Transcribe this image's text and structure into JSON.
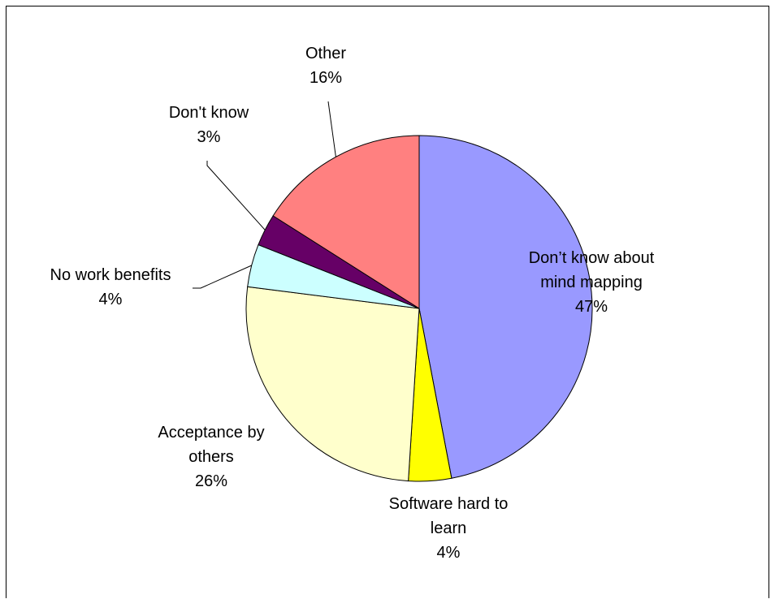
{
  "chart_data": {
    "type": "pie",
    "slices": [
      {
        "label_lines": [
          "Don’t know about",
          "mind mapping"
        ],
        "value": 47,
        "value_label": "47%",
        "color": "#9999ff"
      },
      {
        "label_lines": [
          "Software hard to",
          "learn"
        ],
        "value": 4,
        "value_label": "4%",
        "color": "#ffff00"
      },
      {
        "label_lines": [
          "Acceptance by",
          "others"
        ],
        "value": 26,
        "value_label": "26%",
        "color": "#ffffcc"
      },
      {
        "label_lines": [
          "No work benefits"
        ],
        "value": 4,
        "value_label": "4%",
        "color": "#ccffff"
      },
      {
        "label_lines": [
          "Don't know"
        ],
        "value": 3,
        "value_label": "3%",
        "color": "#660066"
      },
      {
        "label_lines": [
          "Other"
        ],
        "value": 16,
        "value_label": "16%",
        "color": "#ff8080"
      }
    ],
    "legend": "none",
    "data_labels": "outside"
  }
}
